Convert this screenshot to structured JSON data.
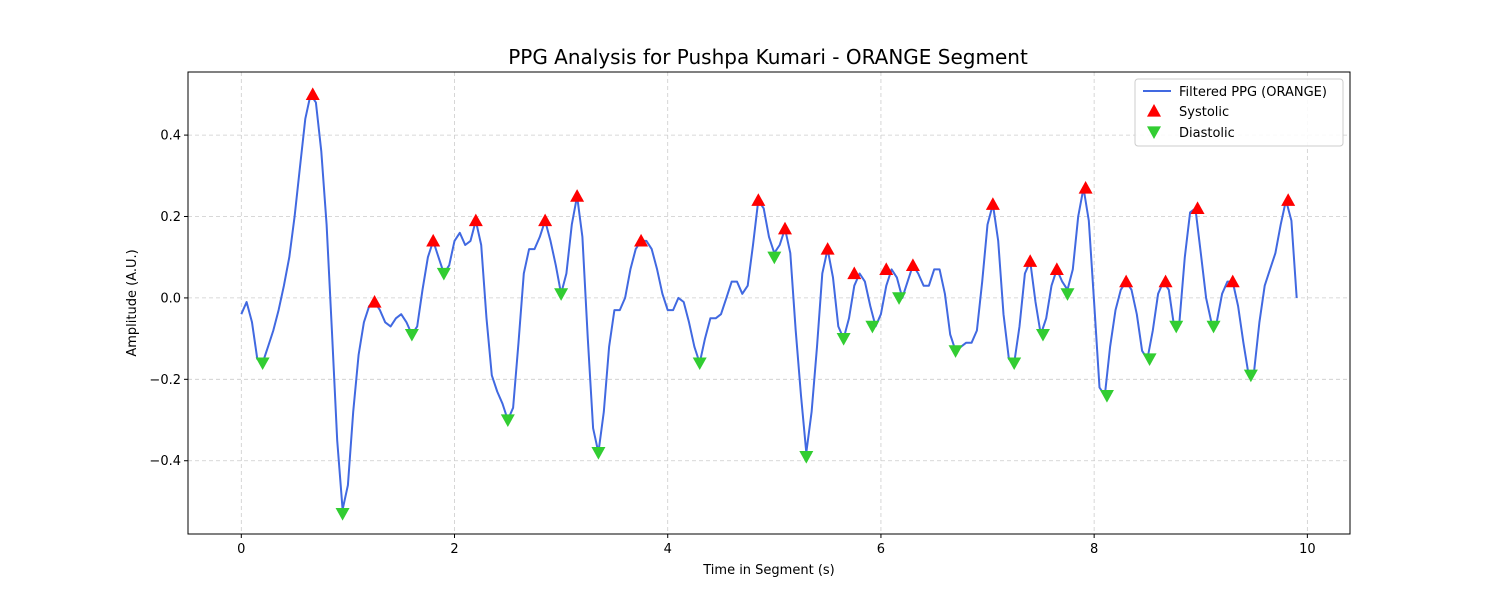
{
  "chart_data": {
    "type": "line",
    "title": "PPG Analysis for Pushpa Kumari - ORANGE Segment",
    "xlabel": "Time in Segment (s)",
    "ylabel": "Amplitude (A.U.)",
    "xlim": [
      -0.5,
      10.4
    ],
    "ylim": [
      -0.58,
      0.555
    ],
    "xticks": [
      0,
      2,
      4,
      6,
      8,
      10
    ],
    "xtick_labels": [
      "0",
      "2",
      "4",
      "6",
      "8",
      "10"
    ],
    "yticks": [
      -0.4,
      -0.2,
      0.0,
      0.2,
      0.4
    ],
    "ytick_labels": [
      "−0.4",
      "−0.2",
      "0.0",
      "0.2",
      "0.4"
    ],
    "grid": true,
    "legend_position": "top-right",
    "colors": {
      "line": "#4169e1",
      "systolic": "#ff0000",
      "diastolic": "#32cd32",
      "grid": "#cccccc"
    },
    "series": [
      {
        "name": "Filtered PPG (ORANGE)",
        "kind": "line",
        "x": [
          0.0,
          0.05,
          0.1,
          0.15,
          0.2,
          0.25,
          0.3,
          0.35,
          0.4,
          0.45,
          0.5,
          0.55,
          0.6,
          0.65,
          0.7,
          0.75,
          0.8,
          0.85,
          0.9,
          0.95,
          1.0,
          1.05,
          1.1,
          1.15,
          1.2,
          1.25,
          1.3,
          1.35,
          1.4,
          1.45,
          1.5,
          1.55,
          1.6,
          1.65,
          1.7,
          1.75,
          1.8,
          1.85,
          1.9,
          1.95,
          2.0,
          2.05,
          2.1,
          2.15,
          2.2,
          2.25,
          2.3,
          2.35,
          2.4,
          2.45,
          2.5,
          2.55,
          2.6,
          2.65,
          2.7,
          2.75,
          2.8,
          2.85,
          2.9,
          2.95,
          3.0,
          3.05,
          3.1,
          3.15,
          3.2,
          3.25,
          3.3,
          3.35,
          3.4,
          3.45,
          3.5,
          3.55,
          3.6,
          3.65,
          3.7,
          3.75,
          3.8,
          3.85,
          3.9,
          3.95,
          4.0,
          4.05,
          4.1,
          4.15,
          4.2,
          4.25,
          4.3,
          4.35,
          4.4,
          4.45,
          4.5,
          4.55,
          4.6,
          4.65,
          4.7,
          4.75,
          4.8,
          4.85,
          4.9,
          4.95,
          5.0,
          5.05,
          5.1,
          5.15,
          5.2,
          5.25,
          5.3,
          5.35,
          5.4,
          5.45,
          5.5,
          5.55,
          5.6,
          5.65,
          5.7,
          5.75,
          5.8,
          5.85,
          5.9,
          5.95,
          6.0,
          6.05,
          6.1,
          6.15,
          6.2,
          6.25,
          6.3,
          6.35,
          6.4,
          6.45,
          6.5,
          6.55,
          6.6,
          6.65,
          6.7,
          6.75,
          6.8,
          6.85,
          6.9,
          6.95,
          7.0,
          7.05,
          7.1,
          7.15,
          7.2,
          7.25,
          7.3,
          7.35,
          7.4,
          7.45,
          7.5,
          7.55,
          7.6,
          7.65,
          7.7,
          7.75,
          7.8,
          7.85,
          7.9,
          7.95,
          8.0,
          8.05,
          8.1,
          8.15,
          8.2,
          8.25,
          8.3,
          8.35,
          8.4,
          8.45,
          8.5,
          8.55,
          8.6,
          8.65,
          8.7,
          8.75,
          8.8,
          8.85,
          8.9,
          8.95,
          9.0,
          9.05,
          9.1,
          9.15,
          9.2,
          9.25,
          9.3,
          9.35,
          9.4,
          9.45,
          9.5,
          9.55,
          9.6,
          9.65,
          9.7,
          9.75,
          9.8,
          9.85,
          9.9
        ],
        "y": [
          -0.04,
          -0.01,
          -0.06,
          -0.15,
          -0.16,
          -0.12,
          -0.08,
          -0.03,
          0.03,
          0.1,
          0.2,
          0.32,
          0.44,
          0.5,
          0.48,
          0.36,
          0.18,
          -0.08,
          -0.35,
          -0.52,
          -0.46,
          -0.28,
          -0.14,
          -0.06,
          -0.02,
          -0.01,
          -0.03,
          -0.06,
          -0.07,
          -0.05,
          -0.04,
          -0.06,
          -0.09,
          -0.07,
          0.02,
          0.1,
          0.14,
          0.1,
          0.06,
          0.08,
          0.14,
          0.16,
          0.13,
          0.14,
          0.19,
          0.13,
          -0.05,
          -0.19,
          -0.23,
          -0.26,
          -0.3,
          -0.27,
          -0.11,
          0.06,
          0.12,
          0.12,
          0.15,
          0.19,
          0.14,
          0.08,
          0.01,
          0.06,
          0.18,
          0.25,
          0.15,
          -0.1,
          -0.32,
          -0.38,
          -0.28,
          -0.12,
          -0.03,
          -0.03,
          0.0,
          0.07,
          0.12,
          0.14,
          0.14,
          0.12,
          0.07,
          0.01,
          -0.03,
          -0.03,
          0.0,
          -0.01,
          -0.06,
          -0.12,
          -0.16,
          -0.1,
          -0.05,
          -0.05,
          -0.04,
          0.0,
          0.04,
          0.04,
          0.01,
          0.03,
          0.13,
          0.24,
          0.22,
          0.15,
          0.11,
          0.13,
          0.17,
          0.11,
          -0.08,
          -0.24,
          -0.38,
          -0.28,
          -0.12,
          0.06,
          0.12,
          0.05,
          -0.07,
          -0.1,
          -0.05,
          0.03,
          0.06,
          0.04,
          -0.02,
          -0.07,
          -0.04,
          0.03,
          0.07,
          0.05,
          0.0,
          0.04,
          0.08,
          0.06,
          0.03,
          0.03,
          0.07,
          0.07,
          0.01,
          -0.09,
          -0.13,
          -0.12,
          -0.11,
          -0.11,
          -0.08,
          0.04,
          0.18,
          0.23,
          0.14,
          -0.04,
          -0.15,
          -0.16,
          -0.07,
          0.06,
          0.09,
          -0.01,
          -0.09,
          -0.05,
          0.03,
          0.07,
          0.04,
          0.02,
          0.07,
          0.2,
          0.27,
          0.19,
          -0.01,
          -0.22,
          -0.24,
          -0.12,
          -0.03,
          0.02,
          0.04,
          0.02,
          -0.04,
          -0.13,
          -0.15,
          -0.08,
          0.01,
          0.04,
          0.02,
          -0.07,
          -0.06,
          0.1,
          0.21,
          0.22,
          0.11,
          0.0,
          -0.06,
          -0.06,
          0.01,
          0.04,
          0.04,
          -0.02,
          -0.11,
          -0.19,
          -0.18,
          -0.06,
          0.03,
          0.07,
          0.11,
          0.18,
          0.24,
          0.19,
          0.0
        ]
      },
      {
        "name": "Systolic",
        "kind": "marker-up",
        "x": [
          0.67,
          1.25,
          1.8,
          2.2,
          2.85,
          3.15,
          3.75,
          4.85,
          5.1,
          5.5,
          5.75,
          6.05,
          6.3,
          7.05,
          7.4,
          7.65,
          7.92,
          8.3,
          8.67,
          8.97,
          9.3,
          9.82
        ],
        "y": [
          0.5,
          -0.01,
          0.14,
          0.19,
          0.19,
          0.25,
          0.14,
          0.24,
          0.17,
          0.12,
          0.06,
          0.07,
          0.08,
          0.23,
          0.09,
          0.07,
          0.27,
          0.04,
          0.04,
          0.22,
          0.04,
          0.24
        ]
      },
      {
        "name": "Diastolic",
        "kind": "marker-down",
        "x": [
          0.2,
          0.95,
          1.6,
          1.9,
          2.5,
          3.0,
          3.35,
          4.3,
          5.0,
          5.3,
          5.65,
          5.92,
          6.17,
          6.7,
          7.25,
          7.52,
          7.75,
          8.12,
          8.52,
          8.77,
          9.12,
          9.47
        ],
        "y": [
          -0.16,
          -0.53,
          -0.09,
          0.06,
          -0.3,
          0.01,
          -0.38,
          -0.16,
          0.1,
          -0.39,
          -0.1,
          -0.07,
          0.0,
          -0.13,
          -0.16,
          -0.09,
          0.01,
          -0.24,
          -0.15,
          -0.07,
          -0.07,
          -0.19
        ]
      }
    ]
  }
}
